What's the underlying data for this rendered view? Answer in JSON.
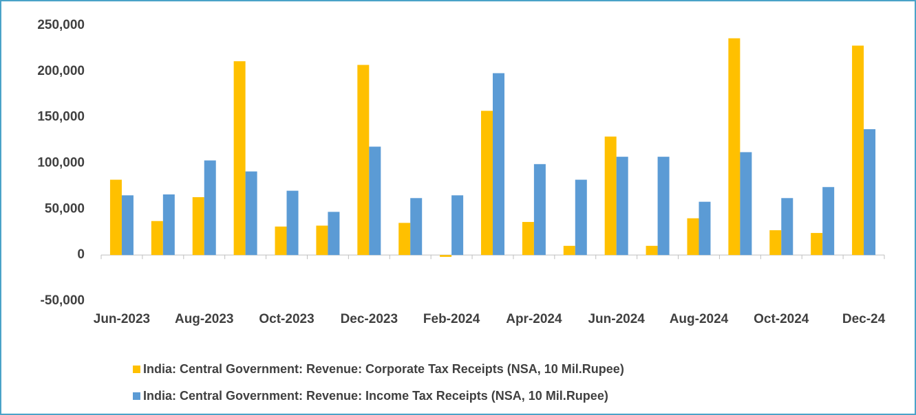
{
  "chart_data": {
    "type": "bar",
    "categories": [
      "Jun-2023",
      null,
      "Aug-2023",
      null,
      "Oct-2023",
      null,
      "Dec-2023",
      null,
      "Feb-2024",
      null,
      "Apr-2024",
      null,
      "Jun-2024",
      null,
      "Aug-2024",
      null,
      "Oct-2024",
      null,
      "Dec-24"
    ],
    "series": [
      {
        "name": "India: Central Government: Revenue: Corporate Tax Receipts (NSA, 10 Mil.Rupee)",
        "color": "#FFC000",
        "values": [
          82000,
          37000,
          63000,
          211000,
          31000,
          32000,
          207000,
          35000,
          -2000,
          157000,
          36000,
          10000,
          129000,
          10000,
          40000,
          236000,
          27000,
          24000,
          228000
        ]
      },
      {
        "name": "India: Central Government: Revenue: Income Tax Receipts (NSA, 10 Mil.Rupee)",
        "color": "#5B9BD5",
        "values": [
          65000,
          66000,
          103000,
          91000,
          70000,
          47000,
          118000,
          62000,
          65000,
          198000,
          99000,
          82000,
          107000,
          107000,
          58000,
          112000,
          62000,
          74000,
          137000
        ]
      }
    ],
    "ylim": [
      -50000,
      250000
    ],
    "yticks": [
      {
        "value": -50000,
        "label": "-50,000"
      },
      0,
      {
        "value": 50000,
        "label": "50,000"
      },
      {
        "value": 100000,
        "label": "100,000"
      },
      {
        "value": 150000,
        "label": "150,000"
      },
      {
        "value": 200000,
        "label": "200,000"
      },
      {
        "value": 250000,
        "label": "250,000"
      }
    ],
    "grid": false
  }
}
